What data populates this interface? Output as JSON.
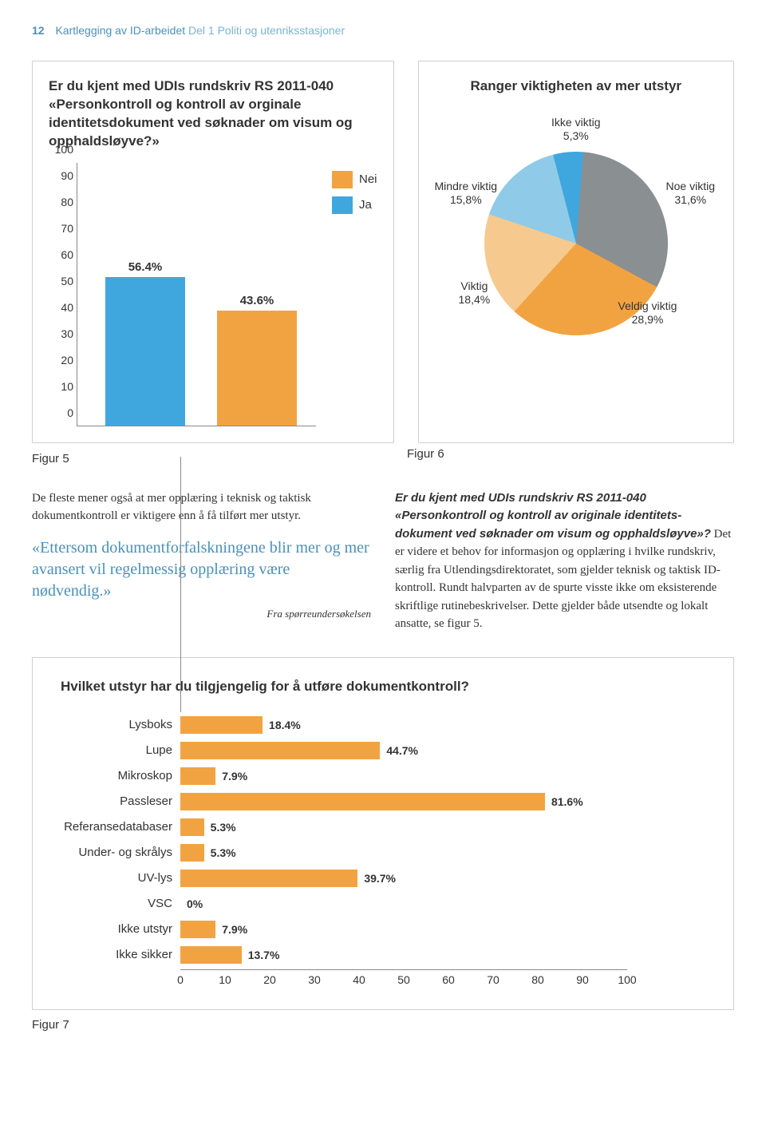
{
  "header": {
    "pagenum": "12",
    "title_main": "Kartlegging av ID-arbeidet",
    "title_light": " Del 1 Politi og utenriksstasjoner"
  },
  "colors": {
    "orange": "#f2a341",
    "blue": "#3fa7de",
    "lightblue": "#8fcbe8",
    "grey": "#8a8f92",
    "peach": "#f6c98f",
    "accent_text": "#4a90b8"
  },
  "fig5": {
    "title": "Er du kjent med UDIs rundskriv RS 2011-040 «Personkontroll og kontroll av orginale identitetsdokument ved søknader om visum og opphaldsløyve?»",
    "ymax": 100,
    "ytick_step": 10,
    "bars": [
      {
        "label": "56.4%",
        "value": 56.4,
        "color": "#3fa7de"
      },
      {
        "label": "43.6%",
        "value": 43.6,
        "color": "#f2a341"
      }
    ],
    "legend": [
      {
        "label": "Nei",
        "color": "#f2a341"
      },
      {
        "label": "Ja",
        "color": "#3fa7de"
      }
    ],
    "caption": "Figur 5"
  },
  "fig6": {
    "title": "Ranger viktigheten av mer utstyr",
    "slices": [
      {
        "name": "Ikke viktig",
        "pct": "5,3%",
        "value": 5.3,
        "color": "#3fa7de"
      },
      {
        "name": "Noe viktig",
        "pct": "31,6%",
        "value": 31.6,
        "color": "#8a8f92"
      },
      {
        "name": "Veldig viktig",
        "pct": "28,9%",
        "value": 28.9,
        "color": "#f2a341"
      },
      {
        "name": "Viktig",
        "pct": "18,4%",
        "value": 18.4,
        "color": "#f6c98f"
      },
      {
        "name": "Mindre viktig",
        "pct": "15,8%",
        "value": 15.8,
        "color": "#8fcbe8"
      }
    ],
    "caption": "Figur 6"
  },
  "body": {
    "left_para": "De fleste mener også at mer opplæring i teknisk og taktisk dokumentkontroll er viktigere enn å få tilført mer utstyr.",
    "quote": "«Ettersom dokumentforfalskningene blir mer og mer avansert vil regelmessig opplæring være nødvendig.»",
    "quote_attr": "Fra spørreundersøkelsen",
    "right_bold": "Er du kjent med UDIs rundskriv RS 2011-040 «Personkontroll og kontroll av originale identitets­dokument ved søknader om visum og opphaldsløyve»?",
    "right_para": " Det er videre et behov for informasjon og opplæring i hvilke rundskriv, særlig fra Utlendingsdirektoratet, som gjelder teknisk og taktisk ID-kontroll. Rundt halvparten av de spurte visste ikke om eksisterende skriftlige rutinebeskrivelser. Dette gjelder både utsendte og lokalt ansatte, se figur 5."
  },
  "fig7": {
    "title": "Hvilket utstyr har du tilgjengelig for å utføre dokumentkontroll?",
    "xmax": 100,
    "xtick_step": 10,
    "bar_color": "#f2a341",
    "rows": [
      {
        "label": "Lysboks",
        "value": 18.4,
        "val_label": "18.4%"
      },
      {
        "label": "Lupe",
        "value": 44.7,
        "val_label": "44.7%"
      },
      {
        "label": "Mikroskop",
        "value": 7.9,
        "val_label": "7.9%"
      },
      {
        "label": "Passleser",
        "value": 81.6,
        "val_label": "81.6%"
      },
      {
        "label": "Referansedatabaser",
        "value": 5.3,
        "val_label": "5.3%"
      },
      {
        "label": "Under- og skrålys",
        "value": 5.3,
        "val_label": "5.3%"
      },
      {
        "label": "UV-lys",
        "value": 39.7,
        "val_label": "39.7%"
      },
      {
        "label": "VSC",
        "value": 0,
        "val_label": "0%"
      },
      {
        "label": "Ikke utstyr",
        "value": 7.9,
        "val_label": "7.9%"
      },
      {
        "label": "Ikke sikker",
        "value": 13.7,
        "val_label": "13.7%"
      }
    ],
    "caption": "Figur 7"
  }
}
